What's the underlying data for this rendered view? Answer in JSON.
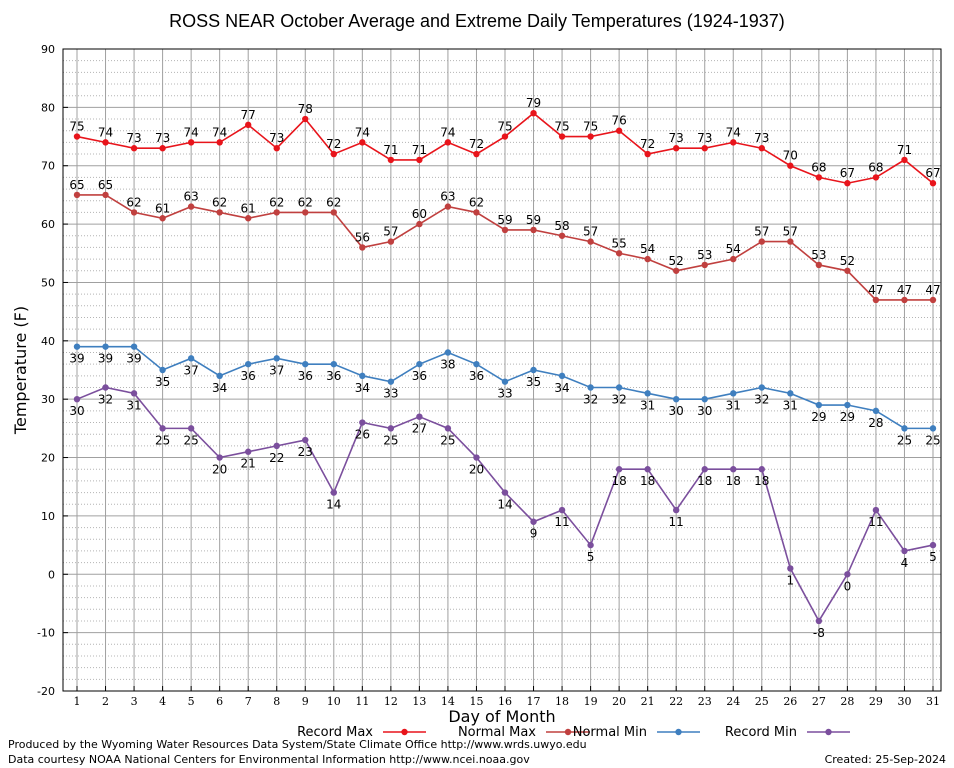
{
  "chart_data": {
    "type": "line",
    "title": "ROSS NEAR October Average and Extreme Daily Temperatures (1924-1937)",
    "xlabel": "Day of Month",
    "ylabel": "Temperature (F)",
    "ylim": [
      -20,
      90
    ],
    "yticks": [
      "-20",
      "-10",
      "0",
      "10",
      "20",
      "30",
      "40",
      "50",
      "60",
      "70",
      "80",
      "90"
    ],
    "x": [
      "1",
      "2",
      "3",
      "4",
      "5",
      "6",
      "7",
      "8",
      "9",
      "10",
      "11",
      "12",
      "13",
      "14",
      "15",
      "16",
      "17",
      "18",
      "19",
      "20",
      "21",
      "22",
      "23",
      "24",
      "25",
      "26",
      "27",
      "28",
      "29",
      "30",
      "31"
    ],
    "grid": true,
    "legend_position": "bottom",
    "series": [
      {
        "name": "Record Max",
        "color": "#e8141b",
        "label_pos": "above",
        "values": [
          75,
          74,
          73,
          73,
          74,
          74,
          77,
          73,
          78,
          72,
          74,
          71,
          71,
          74,
          72,
          75,
          79,
          75,
          75,
          76,
          72,
          73,
          73,
          74,
          73,
          70,
          68,
          67,
          68,
          71,
          67
        ]
      },
      {
        "name": "Normal Max",
        "color": "#c0403f",
        "label_pos": "above",
        "values": [
          65,
          65,
          62,
          61,
          63,
          62,
          61,
          62,
          62,
          62,
          56,
          57,
          60,
          63,
          62,
          59,
          59,
          58,
          57,
          55,
          54,
          52,
          53,
          54,
          57,
          57,
          53,
          52,
          47,
          47,
          47
        ]
      },
      {
        "name": "Normal Min",
        "color": "#3f7fbf",
        "label_pos": "below",
        "values": [
          39,
          39,
          39,
          35,
          37,
          34,
          36,
          37,
          36,
          36,
          34,
          33,
          36,
          38,
          36,
          33,
          35,
          34,
          32,
          32,
          31,
          30,
          30,
          31,
          32,
          31,
          29,
          29,
          28,
          25,
          25
        ]
      },
      {
        "name": "Record Min",
        "color": "#7b4f9d",
        "label_pos": "below",
        "values": [
          30,
          32,
          31,
          25,
          25,
          20,
          21,
          22,
          23,
          14,
          26,
          25,
          27,
          25,
          20,
          14,
          9,
          11,
          5,
          18,
          18,
          11,
          18,
          18,
          18,
          1,
          -8,
          0,
          11,
          4,
          5
        ]
      }
    ]
  },
  "footer": {
    "produced_by": "Produced by the Wyoming Water Resources Data System/State Climate Office http://www.wrds.uwyo.edu",
    "courtesy": "Data courtesy NOAA National Centers for Environmental Information http://www.ncei.noaa.gov",
    "created": "Created:  25-Sep-2024"
  }
}
